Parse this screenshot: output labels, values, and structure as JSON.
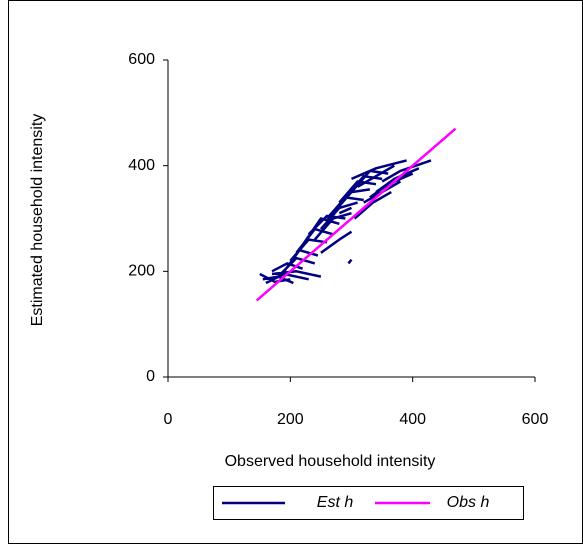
{
  "chart_data": {
    "type": "line",
    "x_label": "Observed household intensity",
    "y_label": "Estimated household intensity",
    "xlim": [
      0,
      600
    ],
    "xticks": [
      0,
      200,
      400,
      600
    ],
    "ylim": [
      0,
      600
    ],
    "yticks": [
      0,
      200,
      400,
      600
    ],
    "legend": "bottom",
    "series": [
      {
        "name": "Est h",
        "color": "#000080",
        "x": [
          150,
          175,
          200,
          null,
          155,
          180,
          205,
          null,
          160,
          190,
          230,
          null,
          170,
          195,
          220,
          null,
          180,
          210,
          240,
          null,
          190,
          215,
          245,
          null,
          200,
          230,
          260,
          null,
          210,
          240,
          270,
          null,
          220,
          250,
          280,
          null,
          230,
          260,
          290,
          null,
          240,
          270,
          300,
          null,
          250,
          280,
          310,
          null,
          260,
          290,
          320,
          null,
          270,
          300,
          330,
          null,
          280,
          310,
          340,
          null,
          290,
          320,
          350,
          null,
          300,
          330,
          360,
          null,
          305,
          335,
          365,
          null,
          320,
          350,
          380,
          null,
          330,
          360,
          400,
          null,
          340,
          370,
          410,
          null,
          350,
          380,
          430,
          null,
          310,
          340,
          370,
          null,
          300,
          340,
          390,
          null,
          280,
          300,
          null,
          295,
          300,
          null,
          250,
          280,
          300,
          null,
          170,
          210,
          250
        ],
        "values": [
          195,
          180,
          185,
          null,
          185,
          190,
          178,
          null,
          178,
          195,
          185,
          null,
          200,
          215,
          205,
          null,
          190,
          225,
          215,
          null,
          200,
          240,
          230,
          null,
          220,
          260,
          255,
          null,
          235,
          280,
          270,
          null,
          250,
          300,
          290,
          null,
          270,
          305,
          300,
          null,
          260,
          300,
          310,
          null,
          280,
          320,
          330,
          null,
          300,
          340,
          335,
          null,
          310,
          350,
          355,
          null,
          330,
          370,
          365,
          null,
          340,
          380,
          375,
          null,
          350,
          390,
          385,
          null,
          300,
          330,
          350,
          null,
          330,
          350,
          370,
          null,
          340,
          365,
          385,
          null,
          350,
          375,
          395,
          null,
          370,
          390,
          410,
          null,
          360,
          380,
          400,
          null,
          375,
          395,
          410,
          null,
          310,
          320,
          null,
          215,
          222,
          null,
          235,
          260,
          275,
          null,
          195,
          200,
          190
        ]
      },
      {
        "name": "Obs h",
        "color": "#ff00ff",
        "x": [
          145,
          470
        ],
        "values": [
          145,
          470
        ]
      }
    ]
  }
}
